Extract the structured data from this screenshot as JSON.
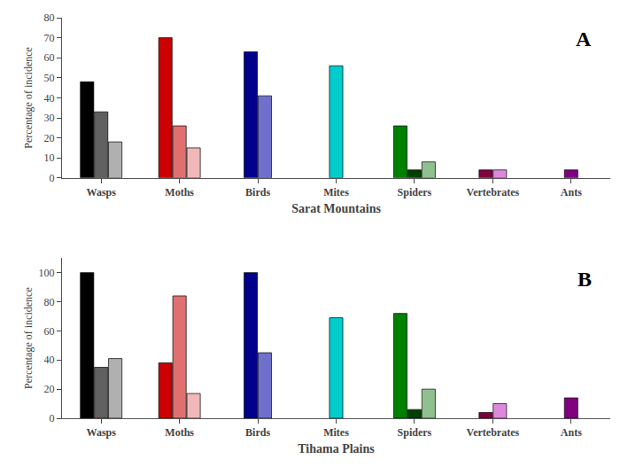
{
  "chart_data": [
    {
      "type": "bar",
      "xlabel": "Sarat Mountains",
      "ylabel": "Percentage of incidence",
      "annotations": [
        "A"
      ],
      "categories": [
        "Wasps",
        "Moths",
        "Birds",
        "Mites",
        "Spiders",
        "Vertebrates",
        "Ants"
      ],
      "series": [
        {
          "values": [
            48,
            70,
            63,
            56,
            26,
            4,
            4
          ],
          "colors": [
            "#000000",
            "#cc0000",
            "#00008b",
            "#00cccc",
            "#008000",
            "#800040",
            "#800080"
          ]
        },
        {
          "values": [
            33,
            26,
            41,
            null,
            4,
            4,
            null
          ],
          "colors": [
            "#606060",
            "#e07070",
            "#7070cc",
            null,
            "#004000",
            "#dd88dd",
            null
          ]
        },
        {
          "values": [
            18,
            15,
            null,
            null,
            8,
            null,
            null
          ],
          "colors": [
            "#b0b0b0",
            "#f0b8b8",
            null,
            null,
            "#90c090",
            null,
            null
          ]
        }
      ],
      "ylim": [
        0,
        80
      ],
      "yticks": [
        0,
        10,
        20,
        30,
        40,
        50,
        60,
        70,
        80
      ],
      "grid": false
    },
    {
      "type": "bar",
      "xlabel": "Tihama Plains",
      "ylabel": "Percentage of incidence",
      "annotations": [
        "B"
      ],
      "categories": [
        "Wasps",
        "Moths",
        "Birds",
        "Mites",
        "Spiders",
        "Vertebrates",
        "Ants"
      ],
      "series": [
        {
          "values": [
            100,
            38,
            100,
            69,
            72,
            4,
            14
          ],
          "colors": [
            "#000000",
            "#cc0000",
            "#00008b",
            "#00cccc",
            "#008000",
            "#800040",
            "#800080"
          ]
        },
        {
          "values": [
            35,
            84,
            45,
            null,
            6,
            10,
            null
          ],
          "colors": [
            "#606060",
            "#e07070",
            "#7070cc",
            null,
            "#004000",
            "#dd88dd",
            null
          ]
        },
        {
          "values": [
            41,
            17,
            null,
            null,
            20,
            null,
            null
          ],
          "colors": [
            "#b0b0b0",
            "#f0b8b8",
            null,
            null,
            "#90c090",
            null,
            null
          ]
        }
      ],
      "ylim": [
        0,
        110
      ],
      "yticks": [
        0,
        20,
        40,
        60,
        80,
        100
      ],
      "grid": false
    }
  ]
}
